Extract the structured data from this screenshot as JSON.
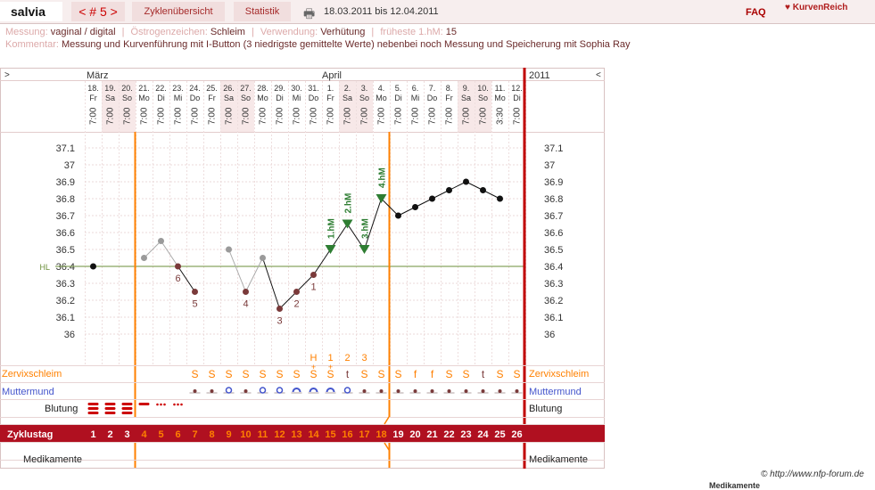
{
  "header": {
    "user": "salvia",
    "cycle_number": "< # 5 >",
    "tab_cycles": "Zyklenübersicht",
    "tab_stats": "Statistik",
    "date_range": "18.03.2011 bis 12.04.2011",
    "faq": "FAQ",
    "logo": "KurvenReich",
    "print_icon": "printer-icon"
  },
  "meta": {
    "messung_label": "Messung:",
    "messung": "vaginal / digital",
    "oestrogen_label": "Östrogenzeichen:",
    "oestrogen": "Schleim",
    "verwendung_label": "Verwendung:",
    "verwendung": "Verhütung",
    "hm_label": "früheste 1.hM:",
    "hm": "15",
    "kommentar_label": "Kommentar:",
    "kommentar": "Messung und Kurvenführung mit I-Button (3 niedrigste gemittelte Werte) nebenbei noch Messung und Speicherung mit Sophia Ray"
  },
  "chart": {
    "nav_left": ">",
    "nav_right": "<",
    "year": "2011",
    "month_left": "März",
    "month_mid": "April",
    "days": [
      {
        "d": "18.",
        "w": "Fr",
        "t": "7:00"
      },
      {
        "d": "19.",
        "w": "Sa",
        "t": "7:00"
      },
      {
        "d": "20.",
        "w": "So",
        "t": "7:00"
      },
      {
        "d": "21.",
        "w": "Mo",
        "t": "7:00"
      },
      {
        "d": "22.",
        "w": "Di",
        "t": "7:00"
      },
      {
        "d": "23.",
        "w": "Mi",
        "t": "7:00"
      },
      {
        "d": "24.",
        "w": "Do",
        "t": "7:00"
      },
      {
        "d": "25.",
        "w": "Fr",
        "t": "7:00"
      },
      {
        "d": "26.",
        "w": "Sa",
        "t": "7:00"
      },
      {
        "d": "27.",
        "w": "So",
        "t": "7:00"
      },
      {
        "d": "28.",
        "w": "Mo",
        "t": "7:00"
      },
      {
        "d": "29.",
        "w": "Di",
        "t": "7:00"
      },
      {
        "d": "30.",
        "w": "Mi",
        "t": "7:00"
      },
      {
        "d": "31.",
        "w": "Do",
        "t": "7:00"
      },
      {
        "d": "1.",
        "w": "Fr",
        "t": "7:00"
      },
      {
        "d": "2.",
        "w": "Sa",
        "t": "7:00"
      },
      {
        "d": "3.",
        "w": "So",
        "t": "7:00"
      },
      {
        "d": "4.",
        "w": "Mo",
        "t": "7:00"
      },
      {
        "d": "5.",
        "w": "Di",
        "t": "7:00"
      },
      {
        "d": "6.",
        "w": "Mi",
        "t": "7:00"
      },
      {
        "d": "7.",
        "w": "Do",
        "t": "7:00"
      },
      {
        "d": "8.",
        "w": "Fr",
        "t": "7:00"
      },
      {
        "d": "9.",
        "w": "Sa",
        "t": "7:00"
      },
      {
        "d": "10.",
        "w": "So",
        "t": "7:00"
      },
      {
        "d": "11.",
        "w": "Mo",
        "t": "3:30"
      },
      {
        "d": "12.",
        "w": "Di",
        "t": "7:00"
      }
    ],
    "y_ticks": [
      "37.1",
      "37",
      "36.9",
      "36.8",
      "36.7",
      "36.6",
      "36.5",
      "36.4",
      "36.3",
      "36.2",
      "36.1",
      "36"
    ],
    "hl_label": "HL",
    "temps": [
      36.4,
      null,
      null,
      36.45,
      36.55,
      36.4,
      36.25,
      null,
      36.5,
      36.25,
      36.45,
      36.15,
      36.25,
      36.35,
      36.5,
      36.65,
      36.5,
      36.8,
      36.7,
      36.75,
      36.8,
      36.85,
      36.9,
      36.85,
      36.8,
      null
    ],
    "point_labels": [
      {
        "i": 5,
        "text": "6"
      },
      {
        "i": 6,
        "text": "5"
      },
      {
        "i": 9,
        "text": "4"
      },
      {
        "i": 11,
        "text": "3"
      },
      {
        "i": 12,
        "text": "2"
      },
      {
        "i": 13,
        "text": "1"
      }
    ],
    "hm_labels": [
      {
        "i": 14,
        "text": "1.hM"
      },
      {
        "i": 15,
        "text": "2.hM"
      },
      {
        "i": 16,
        "text": "3.hM"
      },
      {
        "i": 17,
        "text": "4.hM"
      }
    ],
    "peak_labels": [
      {
        "i": 13,
        "text": "H"
      },
      {
        "i": 14,
        "text": "1"
      },
      {
        "i": 15,
        "text": "2"
      },
      {
        "i": 16,
        "text": "3"
      }
    ],
    "zervix_label": "Zervixschleim",
    "zervix": [
      "",
      "",
      "",
      "",
      "",
      "",
      "S",
      "S",
      "S",
      "S",
      "S",
      "S",
      "S",
      "S",
      "S",
      "t",
      "S",
      "S",
      "S",
      "f",
      "f",
      "S",
      "S",
      "t",
      "S",
      "S"
    ],
    "zervix_plus": [
      "",
      "",
      "",
      "",
      "",
      "",
      "",
      "",
      "",
      "",
      "",
      "",
      "",
      "S+",
      "S+",
      "",
      "",
      "",
      "",
      "",
      "",
      "",
      "",
      "",
      "",
      ""
    ],
    "muttermund_label": "Muttermund",
    "blutung_label": "Blutung",
    "blutung": [
      "heavy",
      "heavy",
      "heavy",
      "medium",
      "light",
      "light",
      "",
      "",
      "",
      "",
      "",
      "",
      "",
      "",
      "",
      "",
      "",
      "",
      "",
      "",
      "",
      "",
      "",
      "",
      "",
      ""
    ],
    "zyklustag_label": "Zyklustag",
    "zyklustage": [
      "1",
      "2",
      "3",
      "4",
      "5",
      "6",
      "7",
      "8",
      "9",
      "10",
      "11",
      "12",
      "13",
      "14",
      "15",
      "16",
      "17",
      "18",
      "19",
      "20",
      "21",
      "22",
      "23",
      "24",
      "25",
      "26"
    ],
    "medikamente_label": "Medikamente"
  },
  "footer": {
    "copyright": "© http://www.nfp-forum.de",
    "below": "Medikamente"
  },
  "colors": {
    "accent": "#b01020",
    "orange": "#ff8000",
    "green": "#2e7d32",
    "pink_bg": "#f7e8e8"
  }
}
